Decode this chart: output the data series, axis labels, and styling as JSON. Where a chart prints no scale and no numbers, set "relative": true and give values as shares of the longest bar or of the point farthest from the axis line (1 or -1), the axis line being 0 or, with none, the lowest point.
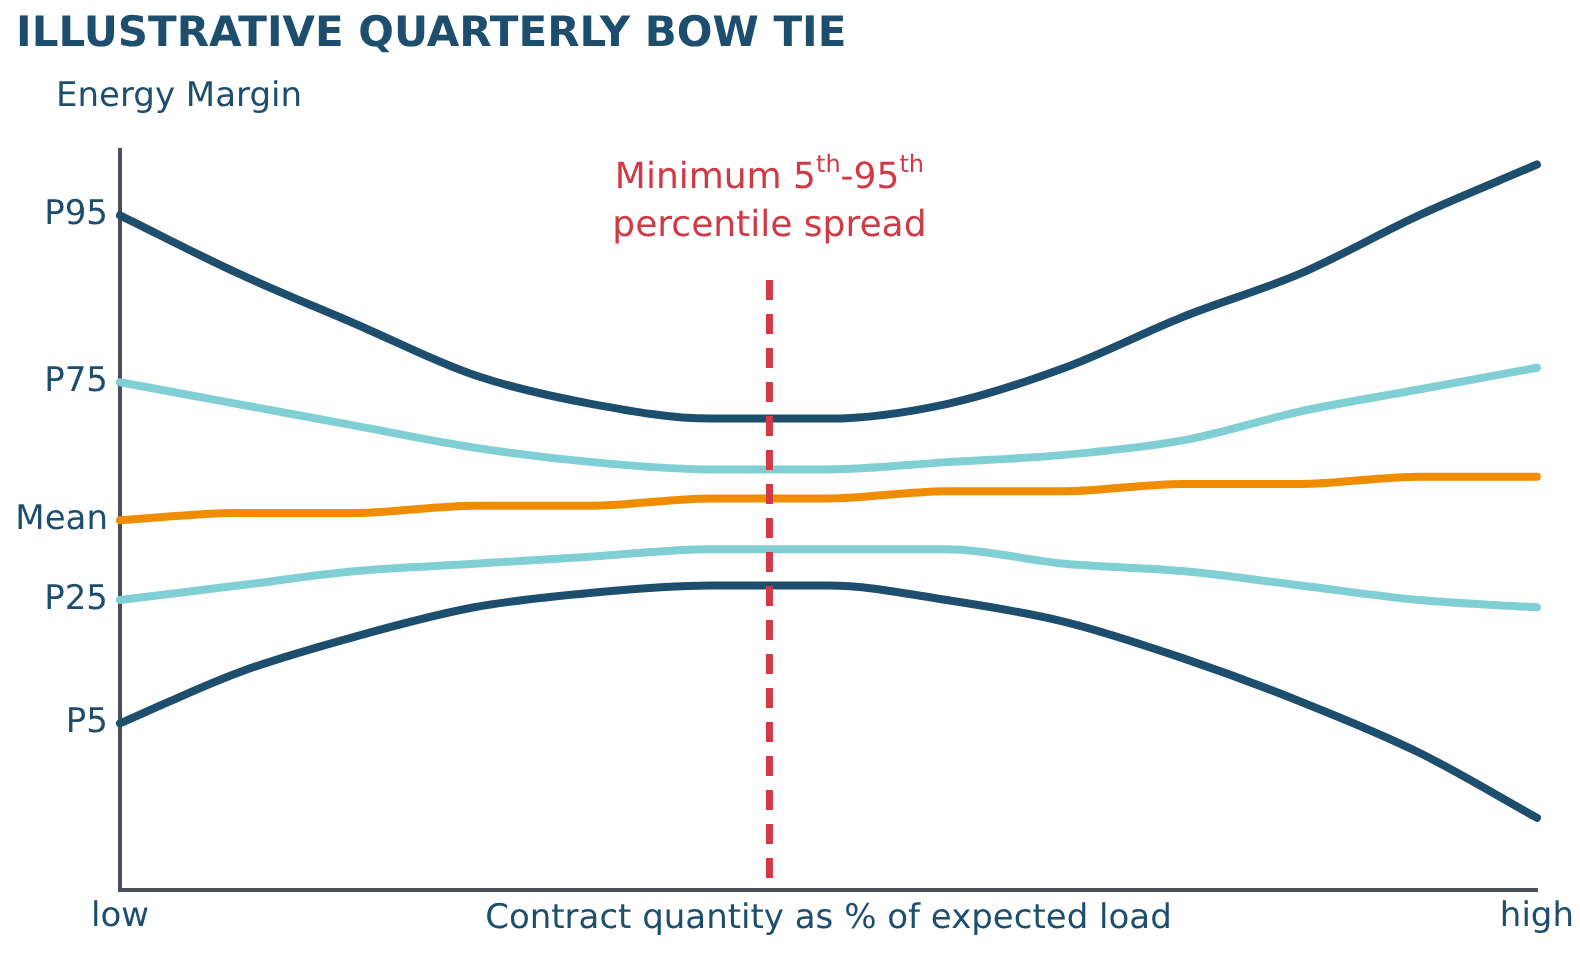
{
  "chart_data": {
    "type": "line",
    "title": "ILLUSTRATIVE QUARTERLY BOW TIE",
    "ylabel": "Energy Margin",
    "xlabel": "Contract quantity as % of expected load",
    "relative": true,
    "categories": [
      "low",
      null,
      null,
      null,
      null,
      null,
      null,
      null,
      null,
      null,
      null,
      null,
      "high"
    ],
    "grid": false,
    "legend": false,
    "marker": "none",
    "line_style": "solid",
    "series": [
      {
        "color": "#1d4e6e",
        "values": [
          0.93,
          0.85,
          0.78,
          0.71,
          0.67,
          0.65,
          0.65,
          0.67,
          0.72,
          0.79,
          0.85,
          0.93,
          1
        ]
      },
      {
        "color": "#7fcfd4",
        "values": [
          0.7,
          0.67,
          0.64,
          0.61,
          0.59,
          0.58,
          0.58,
          0.59,
          0.6,
          0.62,
          0.66,
          0.69,
          0.72
        ]
      },
      {
        "color": "#f08c00",
        "values": [
          0.51,
          0.52,
          0.52,
          0.53,
          0.53,
          0.54,
          0.54,
          0.55,
          0.55,
          0.56,
          0.56,
          0.57,
          0.57
        ]
      },
      {
        "color": "#7fcfd4",
        "values": [
          0.4,
          0.42,
          0.44,
          0.45,
          0.46,
          0.47,
          0.47,
          0.47,
          0.45,
          0.44,
          0.42,
          0.4,
          0.39
        ]
      },
      {
        "color": "#1d4e6e",
        "values": [
          0.23,
          0.3,
          0.35,
          0.39,
          0.41,
          0.42,
          0.42,
          0.4,
          0.37,
          0.32,
          0.26,
          0.19,
          0.1
        ]
      }
    ],
    "annotations": [
      "P95",
      "P75",
      "Mean",
      "P25",
      "P5",
      "Minimum 5$^{th}$-95$^{th}$ percentile spread"
    ]
  }
}
